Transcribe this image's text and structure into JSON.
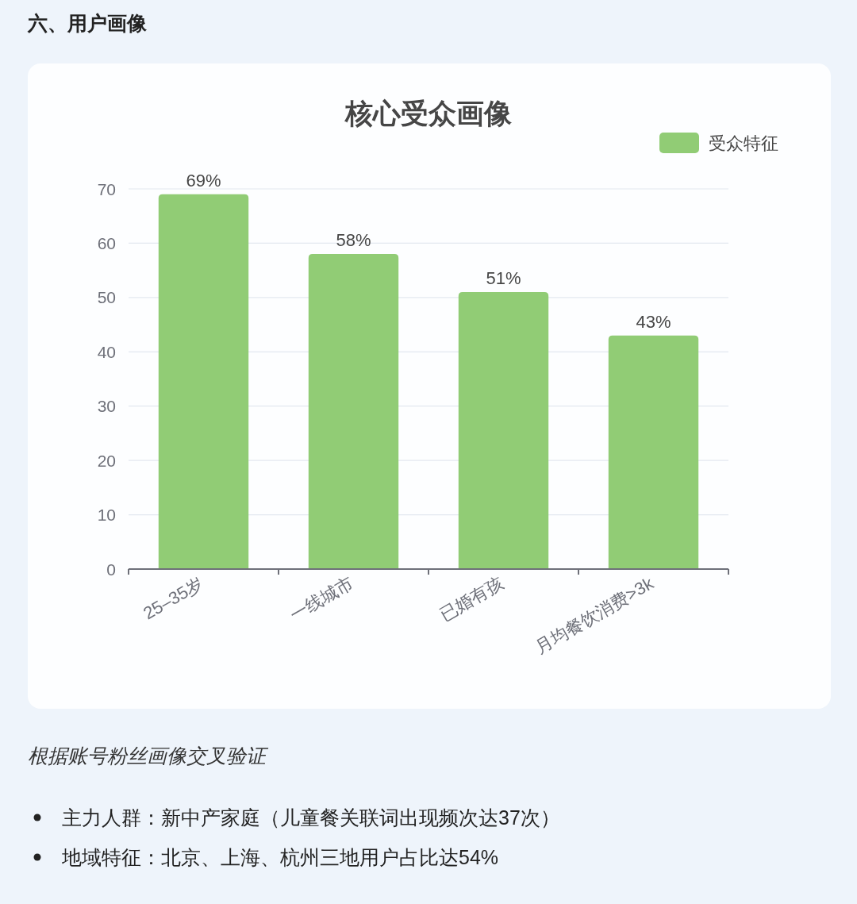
{
  "chart_data": {
    "type": "bar",
    "title": "核心受众画像",
    "categories": [
      "25–35岁",
      "一线城市",
      "已婚有孩",
      "月均餐饮消费>3k"
    ],
    "series": [
      {
        "name": "受众特征",
        "color": "#91cc75",
        "values": [
          69,
          58,
          51,
          43
        ],
        "value_labels": [
          "69%",
          "58%",
          "51%",
          "43%"
        ]
      }
    ],
    "ylim": [
      0,
      70
    ],
    "yticks": [
      0,
      10,
      20,
      30,
      40,
      50,
      60,
      70
    ],
    "grid": "y",
    "legend": "top right",
    "annotations": [
      "六、用户画像",
      "根据账号粉丝画像交叉验证",
      "主力人群：新中产家庭（儿童餐关联词出现频次达37次）",
      "地域特征：北京、上海、杭州三地用户占比达54%"
    ]
  }
}
